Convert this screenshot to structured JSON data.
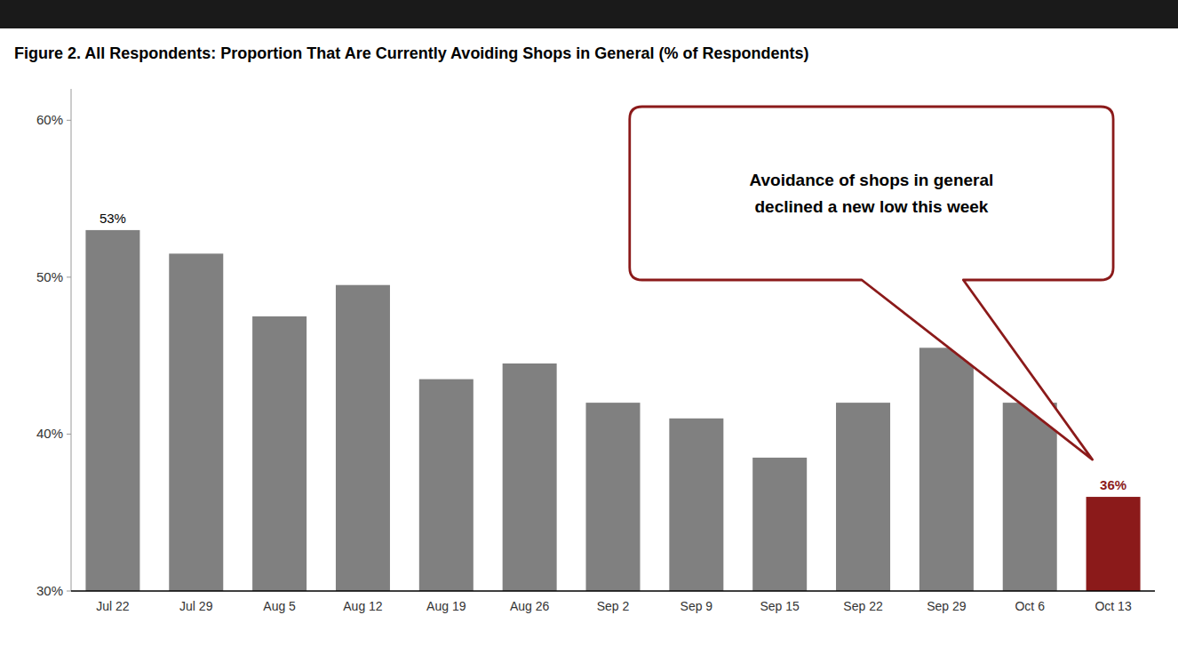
{
  "chart_data": {
    "type": "bar",
    "title": "Figure 2. All Respondents: Proportion That Are Currently Avoiding Shops in General (% of Respondents)",
    "categories": [
      "Jul 22",
      "Jul 29",
      "Aug 5",
      "Aug 12",
      "Aug 19",
      "Aug 26",
      "Sep 2",
      "Sep 9",
      "Sep 15",
      "Sep 22",
      "Sep 29",
      "Oct 6",
      "Oct 13"
    ],
    "values": [
      53,
      51.5,
      47.5,
      49.5,
      43.5,
      44.5,
      42,
      41,
      38.5,
      42,
      45.5,
      42,
      36
    ],
    "value_labels": [
      "53%",
      null,
      null,
      null,
      null,
      null,
      null,
      null,
      null,
      null,
      null,
      null,
      "36%"
    ],
    "colors": [
      "#808080",
      "#808080",
      "#808080",
      "#808080",
      "#808080",
      "#808080",
      "#808080",
      "#808080",
      "#808080",
      "#808080",
      "#808080",
      "#808080",
      "#8B1A1A"
    ],
    "ylim": [
      30,
      62
    ],
    "yticks": [
      {
        "value": 30,
        "label": "30%"
      },
      {
        "value": 40,
        "label": "40%"
      },
      {
        "value": 50,
        "label": "50%"
      },
      {
        "value": 60,
        "label": "60%"
      }
    ],
    "grid": false,
    "annotation": "Avoidance of shops in general\ndeclined a new low this week",
    "annotation_color": "#8B1A1A"
  }
}
